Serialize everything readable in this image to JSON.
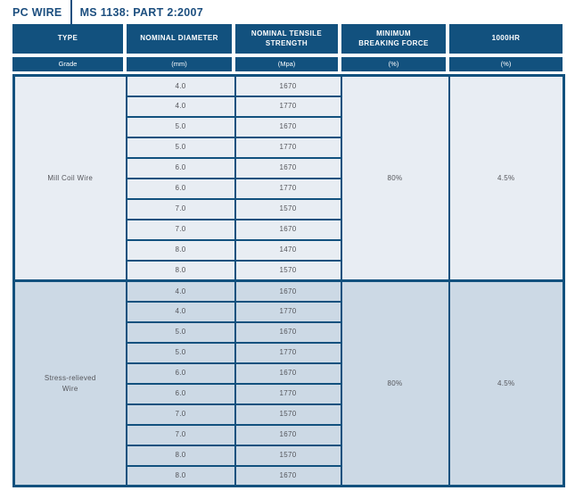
{
  "title": {
    "product": "PC WIRE",
    "standard": "MS 1138: PART 2:2007"
  },
  "colors": {
    "navy": "#12517e",
    "title_text": "#1d4f7f",
    "section1_bg": "#e8edf3",
    "section2_bg": "#ccd9e5",
    "header_text": "#ffffff",
    "body_text": "#55565b"
  },
  "table": {
    "columns": {
      "type": "TYPE",
      "diameter": "NOMINAL DIAMETER",
      "tensile": "NOMINAL TENSILE\nSTRENGTH",
      "breaking": "MINIMUM\nBREAKING FORCE",
      "hr1000": "1000HR"
    },
    "units": {
      "type": "Grade",
      "diameter": "(mm)",
      "tensile": "(Mpa)",
      "breaking": "(%)",
      "hr1000": "(%)"
    },
    "sections": [
      {
        "type": "Mill Coil Wire",
        "rows": [
          [
            "4.0",
            "1670"
          ],
          [
            "4.0",
            "1770"
          ],
          [
            "5.0",
            "1670"
          ],
          [
            "5.0",
            "1770"
          ],
          [
            "6.0",
            "1670"
          ],
          [
            "6.0",
            "1770"
          ],
          [
            "7.0",
            "1570"
          ],
          [
            "7.0",
            "1670"
          ],
          [
            "8.0",
            "1470"
          ],
          [
            "8.0",
            "1570"
          ]
        ],
        "min_breaking_force": "80%",
        "hr_1000": "4.5%"
      },
      {
        "type": "Stress-relieved\nWire",
        "rows": [
          [
            "4.0",
            "1670"
          ],
          [
            "4.0",
            "1770"
          ],
          [
            "5.0",
            "1670"
          ],
          [
            "5.0",
            "1770"
          ],
          [
            "6.0",
            "1670"
          ],
          [
            "6.0",
            "1770"
          ],
          [
            "7.0",
            "1570"
          ],
          [
            "7.0",
            "1670"
          ],
          [
            "8.0",
            "1570"
          ],
          [
            "8.0",
            "1670"
          ]
        ],
        "min_breaking_force": "80%",
        "hr_1000": "4.5%"
      }
    ]
  }
}
